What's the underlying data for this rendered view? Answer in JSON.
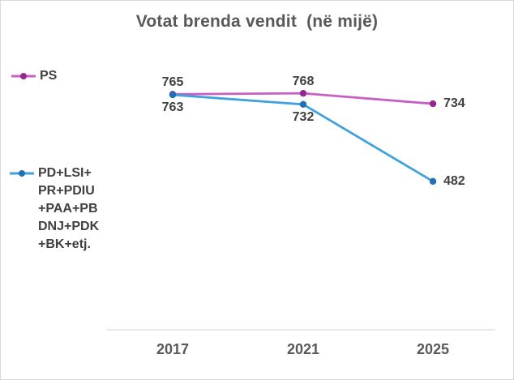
{
  "chart": {
    "title": "Votat brenda vendit  (në mijë)"
  },
  "chart_data": {
    "type": "line",
    "title": "Votat brenda vendit  (në mijë)",
    "categories": [
      "2017",
      "2021",
      "2025"
    ],
    "series": [
      {
        "name": "PS",
        "values": [
          765,
          768,
          734
        ],
        "line_color": "#c95fc4",
        "marker_color": "#96278f",
        "label_placements": [
          "above",
          "above",
          "right"
        ]
      },
      {
        "name": "PD+LSI+\nPR+PDIU\n+PAA+PB\nDNJ+PDK\n+BK+etj.",
        "values": [
          763,
          732,
          482
        ],
        "line_color": "#41a1dc",
        "marker_color": "#1f70b5",
        "label_placements": [
          "below",
          "below",
          "right"
        ]
      }
    ],
    "xlabel": "",
    "ylabel": "",
    "ylim": [
      0,
      800
    ],
    "grid": false,
    "legend_position": "left",
    "axis_line_color": "#d9d9d9"
  }
}
